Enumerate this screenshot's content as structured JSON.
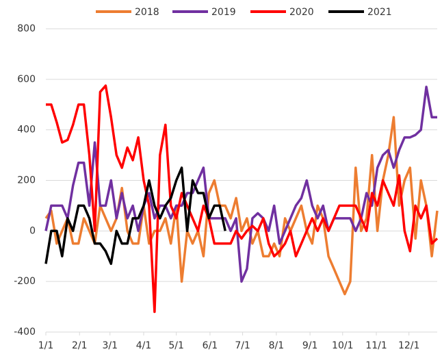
{
  "chart_data": {
    "type": "line",
    "x": [
      0,
      5,
      10,
      15,
      20,
      25,
      30,
      35,
      40,
      45,
      50,
      55,
      60,
      65,
      70,
      75,
      80,
      85,
      90,
      95,
      100,
      105,
      110,
      115,
      120,
      125,
      130,
      135,
      140,
      145,
      150,
      155,
      160,
      165,
      170,
      175,
      180,
      185,
      190,
      195,
      200,
      205,
      210,
      215,
      220,
      225,
      230,
      235,
      240,
      245,
      250,
      255,
      260,
      265,
      270,
      275,
      280,
      285,
      290,
      295,
      300,
      305,
      310,
      315,
      320,
      325,
      330,
      335,
      340,
      345,
      350,
      355,
      360
    ],
    "xlim": [
      0,
      360
    ],
    "xticks": [
      {
        "value": 0,
        "label": "1/1"
      },
      {
        "value": 31,
        "label": "2/1"
      },
      {
        "value": 59,
        "label": "3/1"
      },
      {
        "value": 90,
        "label": "4/1"
      },
      {
        "value": 120,
        "label": "5/1"
      },
      {
        "value": 151,
        "label": "6/1"
      },
      {
        "value": 181,
        "label": "7/1"
      },
      {
        "value": 212,
        "label": "8/1"
      },
      {
        "value": 243,
        "label": "9/1"
      },
      {
        "value": 273,
        "label": "10/1"
      },
      {
        "value": 304,
        "label": "11/1"
      },
      {
        "value": 334,
        "label": "12/1"
      }
    ],
    "ylim": [
      -400,
      800
    ],
    "yticks": [
      -400,
      -200,
      0,
      200,
      400,
      600,
      800
    ],
    "grid": true,
    "legend": "top",
    "series": [
      {
        "name": "2018",
        "color": "#ed7d31",
        "values": [
          50,
          80,
          -50,
          0,
          50,
          -50,
          -50,
          50,
          0,
          -50,
          100,
          50,
          0,
          50,
          170,
          0,
          -50,
          -50,
          100,
          -50,
          0,
          0,
          50,
          -50,
          100,
          -200,
          0,
          -50,
          0,
          -100,
          150,
          200,
          100,
          100,
          50,
          130,
          0,
          50,
          -50,
          0,
          -100,
          -100,
          -50,
          -100,
          50,
          0,
          50,
          100,
          0,
          -50,
          100,
          50,
          -100,
          -150,
          -200,
          -250,
          -200,
          250,
          0,
          50,
          300,
          0,
          200,
          300,
          450,
          100,
          200,
          250,
          -30,
          200,
          100,
          -100,
          80
        ]
      },
      {
        "name": "2019",
        "color": "#7030a0",
        "values": [
          0,
          100,
          100,
          100,
          50,
          180,
          270,
          270,
          100,
          350,
          100,
          100,
          200,
          50,
          150,
          50,
          100,
          0,
          100,
          150,
          50,
          100,
          100,
          50,
          100,
          100,
          150,
          150,
          200,
          250,
          50,
          50,
          50,
          50,
          0,
          50,
          -200,
          -150,
          50,
          70,
          50,
          0,
          100,
          -50,
          0,
          50,
          100,
          130,
          200,
          100,
          50,
          100,
          0,
          50,
          50,
          50,
          50,
          0,
          50,
          150,
          100,
          250,
          300,
          320,
          250,
          320,
          370,
          370,
          380,
          400,
          570,
          450,
          450
        ]
      },
      {
        "name": "2020",
        "color": "#ff0000",
        "values": [
          500,
          500,
          430,
          350,
          360,
          420,
          500,
          500,
          300,
          0,
          550,
          575,
          450,
          300,
          250,
          330,
          280,
          370,
          200,
          100,
          -320,
          300,
          420,
          100,
          50,
          150,
          100,
          50,
          0,
          100,
          50,
          -50,
          -50,
          -50,
          -50,
          0,
          -30,
          0,
          20,
          0,
          50,
          -50,
          -100,
          -80,
          -50,
          0,
          -100,
          -50,
          0,
          50,
          0,
          50,
          0,
          50,
          100,
          100,
          100,
          100,
          50,
          0,
          150,
          100,
          200,
          150,
          100,
          220,
          0,
          -80,
          100,
          50,
          100,
          -50,
          -30
        ]
      },
      {
        "name": "2021",
        "color": "#000000",
        "values": [
          -130,
          0,
          0,
          -100,
          50,
          0,
          100,
          100,
          50,
          -50,
          -50,
          -80,
          -130,
          0,
          -50,
          -50,
          50,
          50,
          100,
          200,
          100,
          50,
          100,
          130,
          200,
          250,
          0,
          200,
          150,
          150,
          50,
          100,
          100,
          0,
          null,
          null,
          null,
          null,
          null,
          null,
          null,
          null,
          null,
          null,
          null,
          null,
          null,
          null,
          null,
          null,
          null,
          null,
          null,
          null,
          null,
          null,
          null,
          null,
          null,
          null,
          null,
          null,
          null,
          null,
          null,
          null,
          null,
          null,
          null,
          null,
          null,
          null,
          null
        ]
      }
    ]
  }
}
